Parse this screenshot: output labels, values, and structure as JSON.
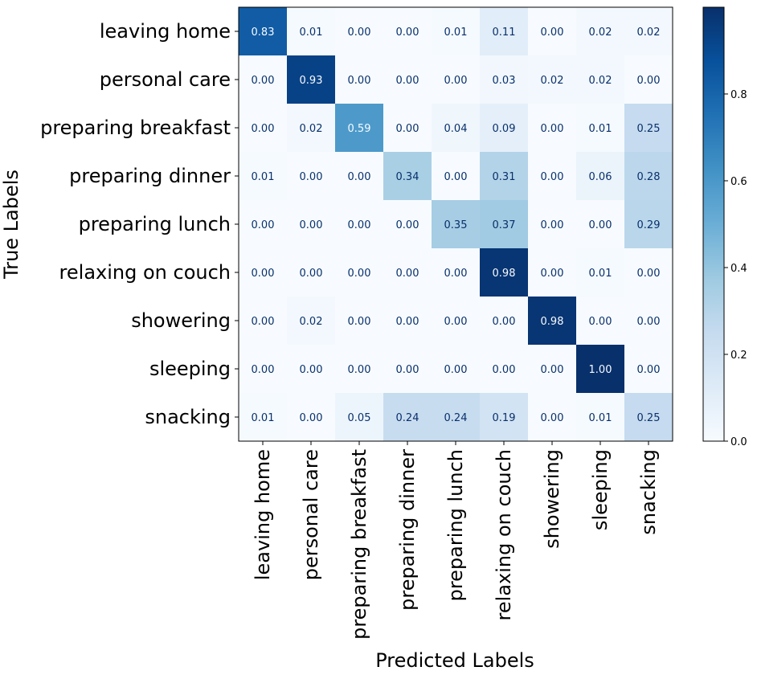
{
  "chart_data": {
    "type": "heatmap",
    "title": "",
    "xlabel": "Predicted Labels",
    "ylabel": "True Labels",
    "x_categories": [
      "leaving home",
      "personal care",
      "preparing breakfast",
      "preparing dinner",
      "preparing lunch",
      "relaxing on couch",
      "showering",
      "sleeping",
      "snacking"
    ],
    "y_categories": [
      "leaving home",
      "personal care",
      "preparing breakfast",
      "preparing dinner",
      "preparing lunch",
      "relaxing on couch",
      "showering",
      "sleeping",
      "snacking"
    ],
    "values": [
      [
        0.83,
        0.01,
        0.0,
        0.0,
        0.01,
        0.11,
        0.0,
        0.02,
        0.02
      ],
      [
        0.0,
        0.93,
        0.0,
        0.0,
        0.0,
        0.03,
        0.02,
        0.02,
        0.0
      ],
      [
        0.0,
        0.02,
        0.59,
        0.0,
        0.04,
        0.09,
        0.0,
        0.01,
        0.25
      ],
      [
        0.01,
        0.0,
        0.0,
        0.34,
        0.0,
        0.31,
        0.0,
        0.06,
        0.28
      ],
      [
        0.0,
        0.0,
        0.0,
        0.0,
        0.35,
        0.37,
        0.0,
        0.0,
        0.29
      ],
      [
        0.0,
        0.0,
        0.0,
        0.0,
        0.0,
        0.98,
        0.0,
        0.01,
        0.0
      ],
      [
        0.0,
        0.02,
        0.0,
        0.0,
        0.0,
        0.0,
        0.98,
        0.0,
        0.0
      ],
      [
        0.0,
        0.0,
        0.0,
        0.0,
        0.0,
        0.0,
        0.0,
        1.0,
        0.0
      ],
      [
        0.01,
        0.0,
        0.05,
        0.24,
        0.24,
        0.19,
        0.0,
        0.01,
        0.25
      ]
    ],
    "value_format": "2 decimals",
    "colormap": "Blues",
    "colorbar": {
      "range": [
        0.0,
        1.0
      ],
      "ticks": [
        "0.0",
        "0.2",
        "0.4",
        "0.6",
        "0.8"
      ],
      "tick_values": [
        0.0,
        0.2,
        0.4,
        0.6,
        0.8
      ]
    },
    "grid": false,
    "legend": "none"
  }
}
